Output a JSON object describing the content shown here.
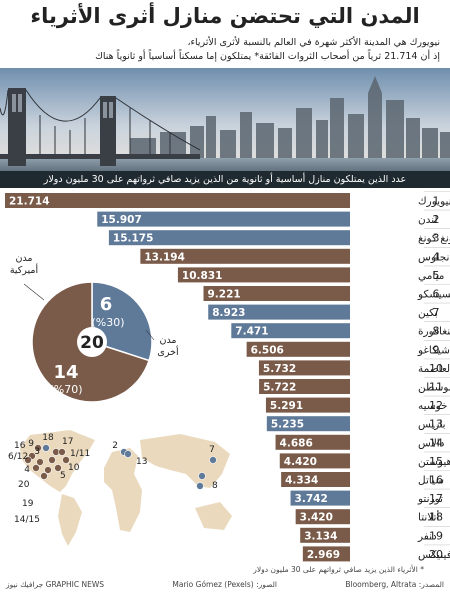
{
  "header": {
    "title": "المدن التي تحتضن منازل أثرى الأثرياء",
    "subtitle_line1": "نيويورك هي المدينة الأكثر شهرة في العالم بالنسبة لأثرى الأثرياء،",
    "subtitle_line2": "إذ أن 21.714 ثرياً من أصحاب الثروات الفائقة* يمتلكون إما مسكناً أساسياً أو ثانوياً هناك"
  },
  "bars_header": "عدد الذين يمتلكون منازل أساسية أو ثانوية من الذين يزيد صافي ثرواتهم على 30 مليون دولار",
  "colors": {
    "american": "#7a5a48",
    "other": "#5f7a99",
    "dark": "#1f2a30"
  },
  "chart_data": {
    "type": "bar",
    "orientation": "horizontal",
    "categories": [
      "نيويورك",
      "لندن",
      "هونغ كونغ",
      "لوس أنجلوس",
      "ميامي",
      "سان فرانسيسكو",
      "بكين",
      "سنغافورة",
      "شيكاغو",
      "واشنطن العاصمة",
      "بوسطن",
      "سان خوسيه",
      "باريس",
      "دالاس",
      "هيوستن",
      "سياتل",
      "تورنتو",
      "أتلانتا",
      "دنفر",
      "فينيكس"
    ],
    "ranks": [
      "1",
      "2",
      "3",
      "4",
      "5",
      "6",
      "7",
      "8",
      "9",
      "10",
      "11",
      "12",
      "13",
      "14",
      "15",
      "16",
      "17",
      "18",
      "19",
      "20"
    ],
    "values": [
      21714,
      15907,
      15175,
      13194,
      10831,
      9221,
      8923,
      7471,
      6506,
      5732,
      5722,
      5291,
      5235,
      4686,
      4420,
      4334,
      3742,
      3420,
      3134,
      2969
    ],
    "value_labels": [
      "21.714",
      "15.907",
      "15.175",
      "13.194",
      "10.831",
      "9.221",
      "8.923",
      "7.471",
      "6.506",
      "5.732",
      "5.722",
      "5.291",
      "5.235",
      "4.686",
      "4.420",
      "4.334",
      "3.742",
      "3.420",
      "3.134",
      "2.969"
    ],
    "group": [
      "american",
      "other",
      "other",
      "american",
      "american",
      "american",
      "other",
      "other",
      "american",
      "american",
      "american",
      "american",
      "other",
      "american",
      "american",
      "american",
      "other",
      "american",
      "american",
      "american"
    ],
    "xlim": [
      0,
      21714
    ]
  },
  "pie": {
    "center_label": "20",
    "american": {
      "label": "مدن أميركية",
      "count": "14",
      "percent": "(%70)",
      "value": 70
    },
    "other": {
      "label": "مدن أخرى",
      "count": "6",
      "percent": "(%30)",
      "value": 30
    }
  },
  "map": {
    "americas_labels": [
      "18",
      "17",
      "9",
      "1/11",
      "16",
      "6/12",
      "3",
      "10",
      "4",
      "5",
      "20",
      "19",
      "14/15"
    ],
    "world_labels": [
      "2",
      "13",
      "7",
      "8"
    ]
  },
  "footer": {
    "note": "* الأثرياء الذين يزيد صافي ثرواتهم على 30 مليون دولار",
    "source": "المصدر: Bloomberg, Altrata",
    "photo_credit": "الصور: Mario Gómez (Pexels)",
    "brand": "GRAPHIC NEWS جرافيك نيوز"
  }
}
